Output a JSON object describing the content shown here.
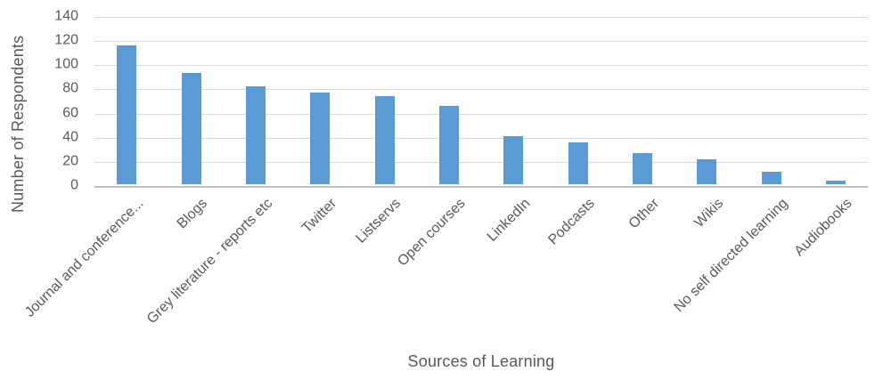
{
  "chart_data": {
    "type": "bar",
    "title": "",
    "xlabel": "Sources of Learning",
    "ylabel": "Number of Respondents",
    "categories": [
      "Journal and conference...",
      "Blogs",
      "Grey literature - reports etc",
      "Twitter",
      "Listservs",
      "Open courses",
      "LinkedIn",
      "Podcasts",
      "Other",
      "Wikis",
      "No self directed learning",
      "Audiobooks"
    ],
    "values": [
      115,
      92,
      81,
      76,
      73,
      65,
      40,
      35,
      26,
      21,
      10,
      3
    ],
    "ylim": [
      0,
      140
    ],
    "yticks": [
      0,
      20,
      40,
      60,
      80,
      100,
      120,
      140
    ],
    "grid": "on",
    "legend": "none",
    "bar_color": "#5B9BD5",
    "gridline_color": "#D9D9D9",
    "axis_line_color": "#BFBFBF",
    "text_color": "#595959"
  }
}
